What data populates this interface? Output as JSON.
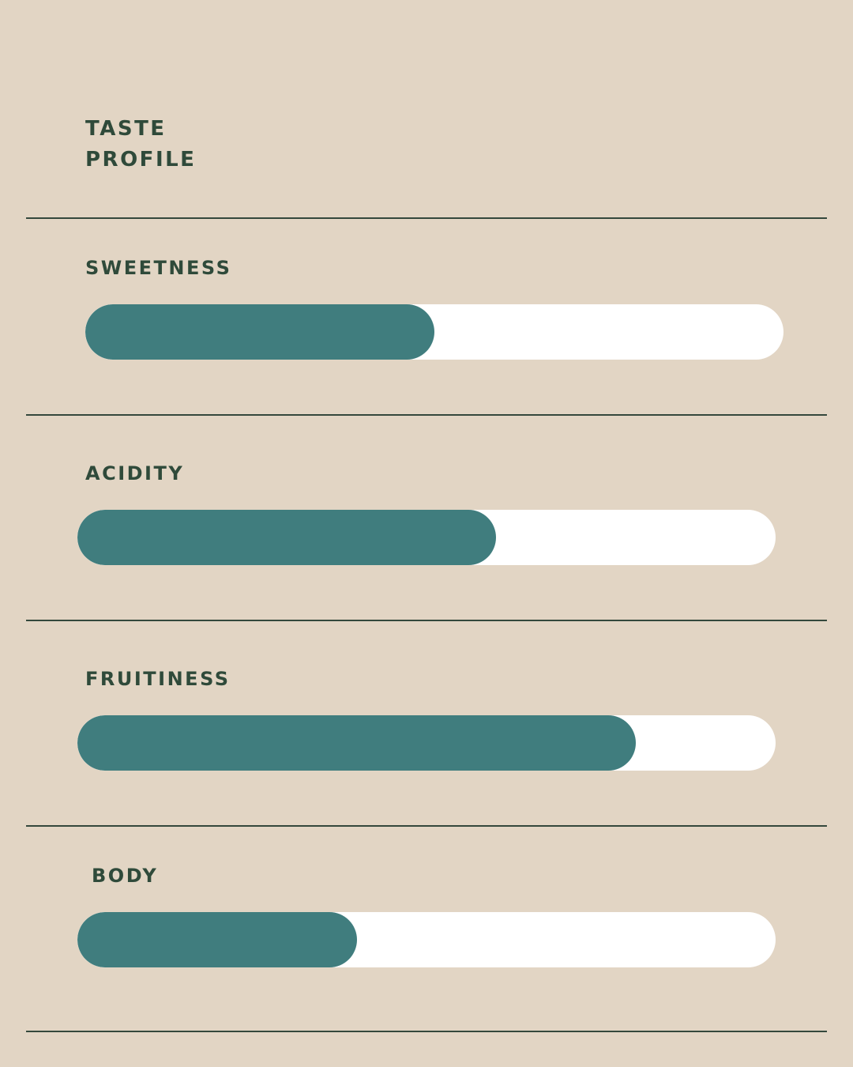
{
  "title_lines": [
    "TASTE",
    "PROFILE"
  ],
  "colors": {
    "background": "#E2D5C4",
    "text": "#2F4A3A",
    "fill": "#407D7E",
    "track": "#FFFFFF"
  },
  "chart_data": {
    "type": "bar",
    "orientation": "horizontal",
    "title": "TASTE PROFILE",
    "categories": [
      "SWEETNESS",
      "ACIDITY",
      "FRUITINESS",
      "BODY"
    ],
    "values": [
      50,
      60,
      80,
      40
    ],
    "unit": "percent",
    "xlim": [
      0,
      100
    ]
  }
}
